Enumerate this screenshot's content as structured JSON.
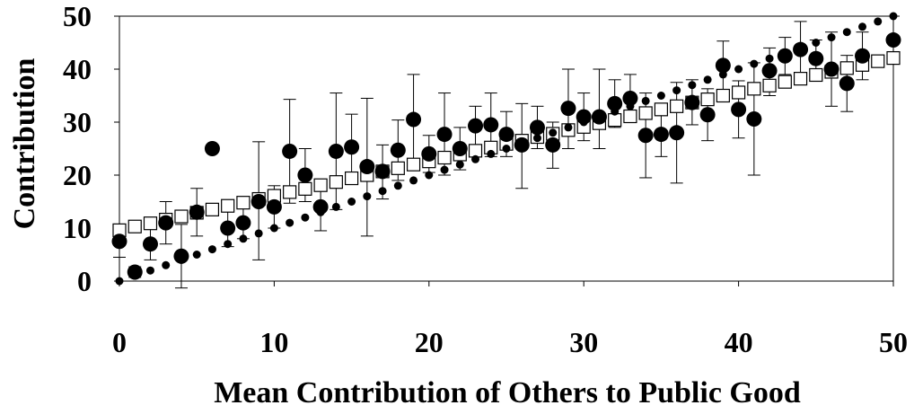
{
  "chart_data": {
    "type": "scatter",
    "title": "",
    "xlabel": "Mean Contribution of Others to Public Good",
    "ylabel": "Contribution",
    "xlim": [
      0,
      50
    ],
    "ylim": [
      0,
      50
    ],
    "x_ticks": [
      0,
      10,
      20,
      30,
      40,
      50
    ],
    "y_ticks": [
      0,
      10,
      20,
      30,
      40,
      50
    ],
    "grid": "horizontal",
    "legend": "none",
    "colors": {
      "markers": "#000000",
      "open_squares": "#ffffff",
      "gridlines": "#000000",
      "background": "#ffffff"
    },
    "series": [
      {
        "marker": "small-filled-circle",
        "x": [
          0,
          1,
          2,
          3,
          4,
          5,
          6,
          7,
          8,
          9,
          10,
          11,
          12,
          13,
          14,
          15,
          16,
          17,
          18,
          19,
          20,
          21,
          22,
          23,
          24,
          25,
          26,
          27,
          28,
          29,
          30,
          31,
          32,
          33,
          34,
          35,
          36,
          37,
          38,
          39,
          40,
          41,
          42,
          43,
          44,
          45,
          46,
          47,
          48,
          49,
          50
        ],
        "y": [
          0,
          1,
          2,
          3,
          4,
          5,
          6,
          7,
          8,
          9,
          10,
          11,
          12,
          13,
          14,
          15,
          16,
          17,
          18,
          19,
          20,
          21,
          22,
          23,
          24,
          25,
          26,
          27,
          28,
          29,
          30,
          31,
          32,
          33,
          34,
          35,
          36,
          37,
          38,
          39,
          40,
          41,
          42,
          43,
          44,
          45,
          46,
          47,
          48,
          49,
          50
        ]
      },
      {
        "marker": "open-square",
        "x": [
          0,
          1,
          2,
          3,
          4,
          5,
          6,
          7,
          8,
          9,
          10,
          11,
          12,
          13,
          14,
          15,
          16,
          17,
          18,
          19,
          20,
          21,
          22,
          23,
          24,
          25,
          26,
          27,
          28,
          29,
          30,
          31,
          32,
          33,
          34,
          35,
          36,
          37,
          38,
          39,
          40,
          41,
          42,
          43,
          44,
          45,
          46,
          47,
          48,
          49,
          50
        ],
        "y": [
          9.6,
          10.3,
          10.9,
          11.6,
          12.2,
          12.9,
          13.5,
          14.2,
          14.8,
          15.5,
          16.1,
          16.8,
          17.4,
          18.1,
          18.7,
          19.4,
          20.0,
          20.7,
          21.3,
          22.0,
          22.6,
          23.3,
          23.9,
          24.6,
          25.2,
          25.9,
          26.5,
          27.2,
          27.8,
          28.5,
          29.1,
          29.8,
          30.4,
          31.1,
          31.7,
          32.4,
          33.0,
          33.7,
          34.3,
          35.0,
          35.6,
          36.3,
          36.9,
          37.6,
          38.2,
          38.9,
          39.5,
          40.2,
          40.8,
          41.5,
          42.1
        ]
      },
      {
        "marker": "large-filled-circle",
        "error_bars": true,
        "x": [
          0,
          1,
          2,
          3,
          4,
          5,
          6,
          7,
          8,
          9,
          10,
          11,
          12,
          13,
          14,
          15,
          16,
          17,
          18,
          19,
          20,
          21,
          22,
          23,
          24,
          25,
          26,
          27,
          28,
          29,
          30,
          31,
          32,
          33,
          34,
          35,
          36,
          37,
          38,
          39,
          40,
          41,
          42,
          43,
          44,
          45,
          46,
          47,
          48,
          50
        ],
        "y": [
          7.5,
          1.7,
          7.0,
          11.0,
          4.7,
          13.0,
          25.0,
          10.0,
          11.0,
          15.0,
          14.0,
          24.5,
          20.0,
          14.0,
          24.5,
          25.3,
          21.6,
          20.7,
          24.7,
          30.5,
          24.0,
          27.7,
          25.0,
          29.3,
          29.5,
          27.7,
          25.7,
          29.0,
          25.7,
          32.6,
          31.0,
          31.0,
          33.5,
          34.5,
          27.5,
          27.7,
          28.0,
          33.7,
          31.4,
          40.7,
          32.4,
          30.6,
          39.7,
          42.5,
          43.7,
          42.0,
          40.0,
          37.3,
          42.5,
          45.5
        ],
        "error_low": [
          4.5,
          0.7,
          4.0,
          7.0,
          -1.3,
          8.5,
          25.0,
          6.5,
          8.0,
          4.0,
          10.0,
          14.7,
          15.0,
          9.5,
          13.5,
          19.0,
          8.5,
          15.5,
          19.0,
          22.0,
          20.5,
          20.0,
          21.0,
          25.7,
          23.5,
          23.5,
          17.5,
          25.0,
          21.3,
          25.0,
          26.5,
          25.0,
          29.0,
          30.0,
          19.5,
          23.5,
          18.5,
          29.5,
          26.5,
          36.0,
          27.0,
          20.0,
          35.0,
          39.0,
          38.5,
          38.5,
          33.0,
          32.0,
          38.0,
          41.0
        ],
        "error_high": [
          10.5,
          2.7,
          10.0,
          15.0,
          10.7,
          17.5,
          25.0,
          13.5,
          14.0,
          26.3,
          18.0,
          34.3,
          25.0,
          18.5,
          35.5,
          31.5,
          34.5,
          25.7,
          30.4,
          39.0,
          27.5,
          35.5,
          29.0,
          33.0,
          35.5,
          32.0,
          33.5,
          33.0,
          30.0,
          40.0,
          35.5,
          40.0,
          38.0,
          39.0,
          35.5,
          32.0,
          37.5,
          38.0,
          36.3,
          45.3,
          37.8,
          41.2,
          44.0,
          46.0,
          49.0,
          45.5,
          47.0,
          42.6,
          47.0,
          50.0
        ]
      }
    ]
  }
}
